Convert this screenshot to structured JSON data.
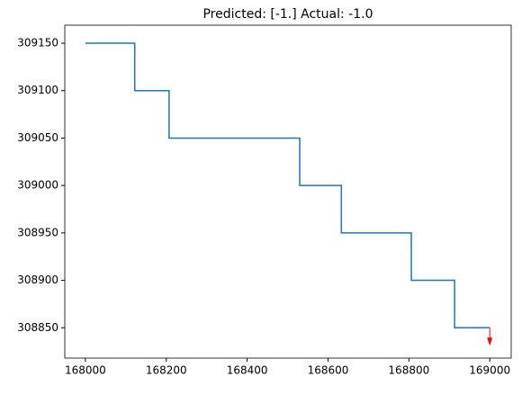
{
  "chart_data": {
    "type": "line",
    "title": "Predicted: [-1.] Actual: -1.0",
    "series": [
      {
        "color": "#1f77b4",
        "x": [
          168000,
          168122,
          168122,
          168207,
          168207,
          168530,
          168530,
          168633,
          168633,
          168806,
          168806,
          168913,
          168913,
          169000
        ],
        "values": [
          309150,
          309150,
          309100,
          309100,
          309050,
          309050,
          309000,
          309000,
          308950,
          308950,
          308900,
          308900,
          308850,
          308850
        ]
      }
    ],
    "arrow": {
      "x": 169000,
      "y": 308850,
      "y_end": 308831,
      "color": "#ff0000"
    },
    "xlim": [
      167949,
      169053
    ],
    "xticks": [
      168000,
      168200,
      168400,
      168600,
      168800,
      169000
    ],
    "ylim": [
      308818,
      309169
    ],
    "yticks": [
      308850,
      308900,
      308950,
      309000,
      309050,
      309100,
      309150
    ]
  }
}
